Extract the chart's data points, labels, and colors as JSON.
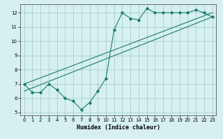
{
  "title": "",
  "xlabel": "Humidex (Indice chaleur)",
  "ylabel": "",
  "xlim": [
    -0.5,
    23.5
  ],
  "ylim": [
    4.8,
    12.6
  ],
  "yticks": [
    5,
    6,
    7,
    8,
    9,
    10,
    11,
    12
  ],
  "xticks": [
    0,
    1,
    2,
    3,
    4,
    5,
    6,
    7,
    8,
    9,
    10,
    11,
    12,
    13,
    14,
    15,
    16,
    17,
    18,
    19,
    20,
    21,
    22,
    23
  ],
  "bg_color": "#d6f0f0",
  "line_color": "#1a7a6e",
  "grid_color": "#a0c8c8",
  "line1_x": [
    0,
    1,
    2,
    3,
    4,
    5,
    6,
    7,
    8,
    9,
    10,
    11,
    12,
    13,
    14,
    15,
    16,
    17,
    18,
    19,
    20,
    21,
    22,
    23
  ],
  "line1_y": [
    7.0,
    6.4,
    6.4,
    7.0,
    6.6,
    6.0,
    5.8,
    5.2,
    5.7,
    6.5,
    7.4,
    10.8,
    12.0,
    11.6,
    11.5,
    12.3,
    12.0,
    12.0,
    12.0,
    12.0,
    12.0,
    12.2,
    12.0,
    11.7
  ],
  "line2_x": [
    0,
    23
  ],
  "line2_y": [
    7.0,
    12.0
  ],
  "line3_x": [
    0,
    23
  ],
  "line3_y": [
    6.5,
    11.7
  ]
}
